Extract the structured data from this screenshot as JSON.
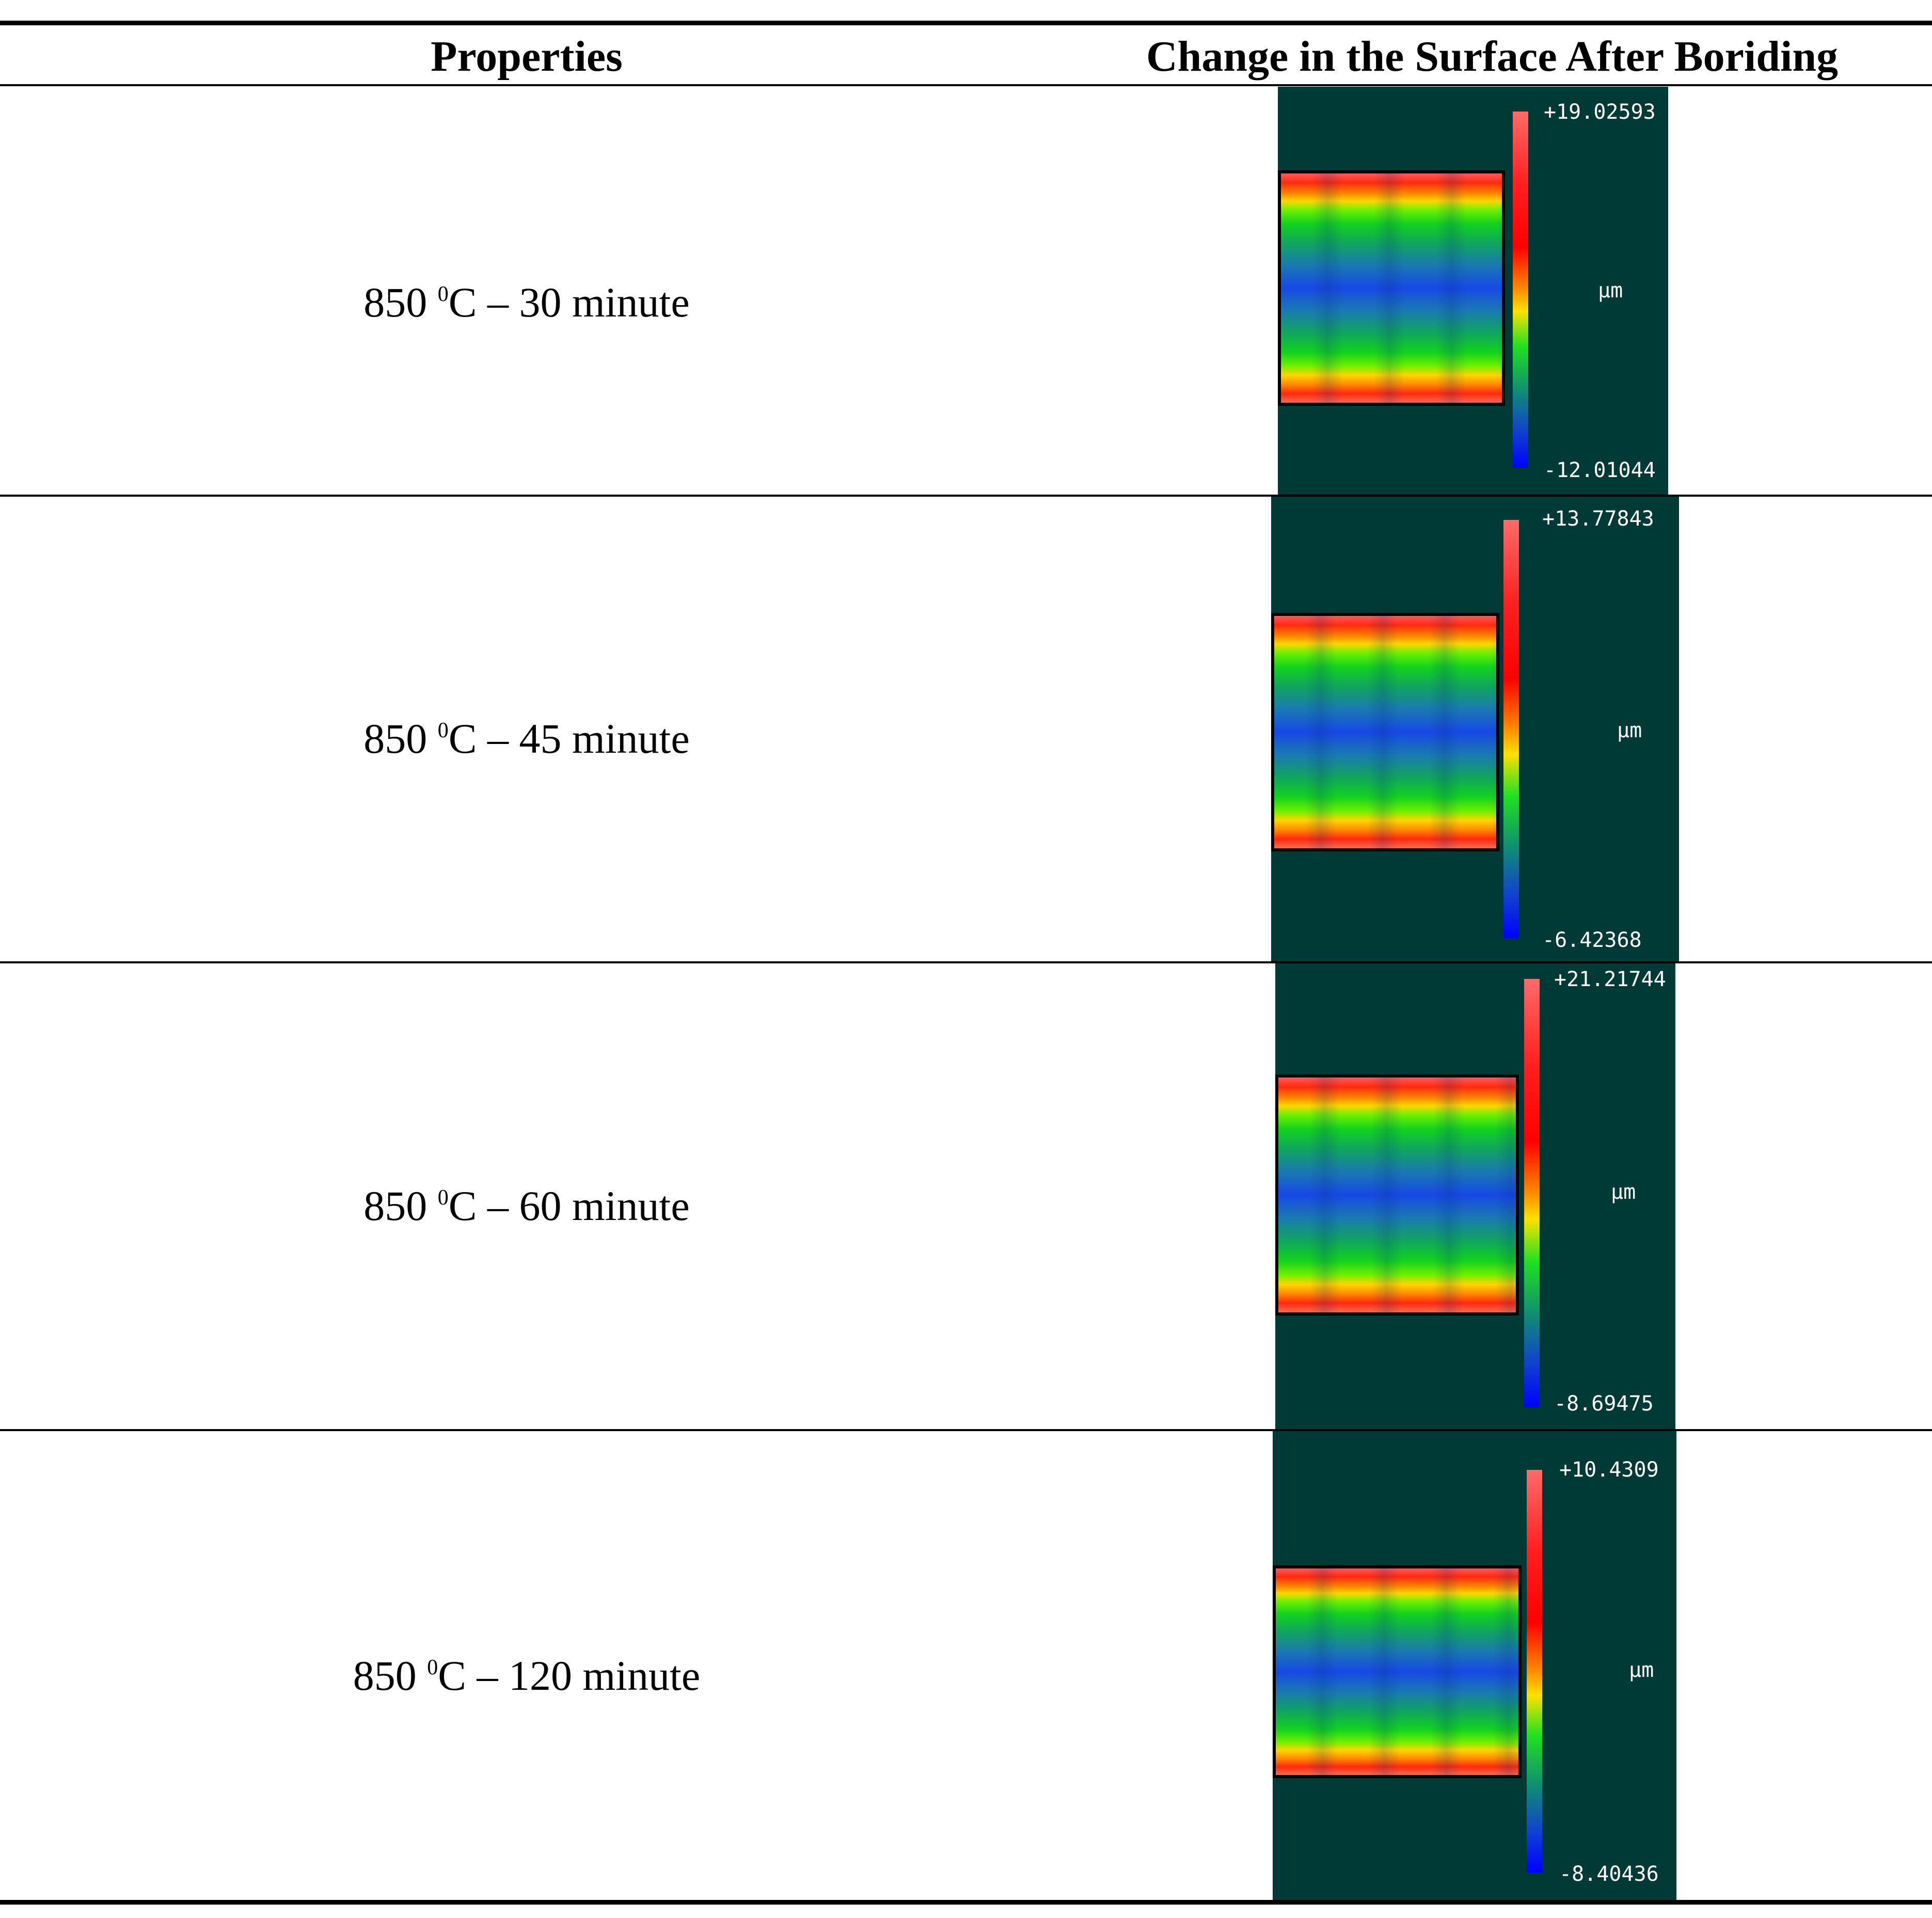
{
  "table": {
    "headers": {
      "properties": "Properties",
      "change": "Change in the Surface After Boriding"
    },
    "rows": [
      {
        "label_prefix": "850 ",
        "label_sup": "0",
        "label_suffix": "C – 30 minute",
        "scale_max": "+19.02593",
        "scale_unit": "μm",
        "scale_min": "-12.01044"
      },
      {
        "label_prefix": "850 ",
        "label_sup": "0",
        "label_suffix": "C – 45 minute",
        "scale_max": "+13.77843",
        "scale_unit": "μm",
        "scale_min": "-6.42368"
      },
      {
        "label_prefix": "850 ",
        "label_sup": "0",
        "label_suffix": "C – 60 minute",
        "scale_max": "+21.21744",
        "scale_unit": "μm",
        "scale_min": "-8.69475"
      },
      {
        "label_prefix": "850 ",
        "label_sup": "0",
        "label_suffix": "C – 120 minute",
        "scale_max": "+10.4309",
        "scale_unit": "μm",
        "scale_min": "-8.40436"
      }
    ]
  },
  "colors": {
    "image_background": "#003a36",
    "rule": "#000000",
    "label_text": "#ffffff"
  },
  "colormap": [
    "#0000ff",
    "#1a7ab0",
    "#12d21e",
    "#ffd600",
    "#ff8c00",
    "#ff0000",
    "#ff6a6a"
  ]
}
